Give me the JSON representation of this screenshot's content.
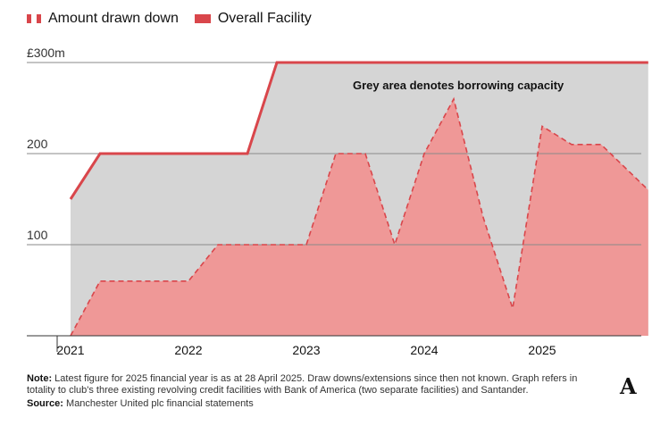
{
  "legend": {
    "drawn": "Amount drawn down",
    "facility": "Overall Facility"
  },
  "chart_data": {
    "type": "area",
    "x_labels": [
      "2021",
      "2022",
      "2023",
      "2024",
      "2025"
    ],
    "y_ticks": [
      "£300m",
      "200",
      "100"
    ],
    "ylim": [
      0,
      300
    ],
    "annotation": "Grey area denotes borrowing capacity",
    "series": [
      {
        "name": "Overall Facility",
        "x": [
          2021.0,
          2021.25,
          2022.5,
          2022.75,
          2025.9
        ],
        "values": [
          150,
          200,
          200,
          300,
          300
        ]
      },
      {
        "name": "Amount drawn down",
        "x": [
          2021.0,
          2021.25,
          2022.0,
          2022.25,
          2023.0,
          2023.25,
          2023.5,
          2023.75,
          2024.0,
          2024.25,
          2024.5,
          2024.75,
          2025.0,
          2025.25,
          2025.5,
          2025.9
        ],
        "values": [
          0,
          60,
          60,
          100,
          100,
          200,
          200,
          100,
          200,
          260,
          130,
          30,
          230,
          210,
          210,
          160
        ]
      }
    ],
    "colors": {
      "facility": "#d9464b",
      "drawn_fill": "#ef9897",
      "drawn_line": "#d9464b",
      "capacity": "#d5d5d5",
      "grid": "#8a8a8a"
    }
  },
  "notes": {
    "note_label": "Note:",
    "note_text": " Latest figure for 2025 financial year is as at 28 April 2025. Draw downs/extensions since then not known. Graph refers in totality to club's three existing revolving credit facilities with Bank of America (two separate facilities) and Santander.",
    "source_label": "Source:",
    "source_text": " Manchester United plc financial statements"
  },
  "logo": "A"
}
